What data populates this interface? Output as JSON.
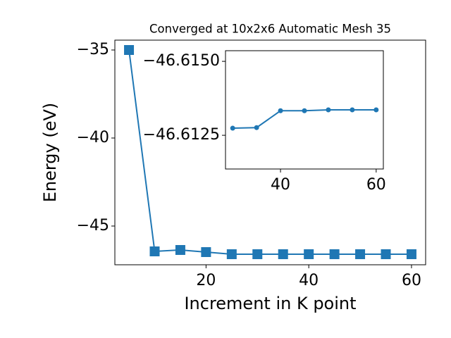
{
  "chart_data": [
    {
      "type": "line",
      "title": "Converged at 10x2x6 Automatic Mesh 35",
      "xlabel": "Increment in K point",
      "ylabel": "Energy (eV)",
      "marker": "square",
      "color": "#1f77b4",
      "x": [
        5,
        10,
        15,
        20,
        25,
        30,
        35,
        40,
        45,
        50,
        55,
        60
      ],
      "values": [
        -35,
        -46.44,
        -46.36,
        -46.48,
        -46.6,
        -46.6,
        -46.6,
        -46.6,
        -46.6,
        -46.6,
        -46.6,
        -46.6
      ],
      "xlim": [
        2.25,
        62.75
      ],
      "ylim": [
        -47.2,
        -34.44
      ],
      "xticks": [
        20,
        40,
        60
      ],
      "yticks": [
        {
          "value": -35,
          "label": "−35"
        },
        {
          "value": -40,
          "label": "−40"
        },
        {
          "value": -45,
          "label": "−45"
        }
      ]
    },
    {
      "type": "line",
      "marker": "circle",
      "color": "#1f77b4",
      "x": [
        30,
        35,
        40,
        45,
        50,
        55,
        60
      ],
      "values": [
        -46.61274,
        -46.61276,
        -46.61333,
        -46.61333,
        -46.61336,
        -46.61336,
        -46.61336
      ],
      "xlim": [
        28.5,
        61.5
      ],
      "ylim": [
        -46.61136,
        -46.61536
      ],
      "xticks": [
        40,
        60
      ],
      "yticks": [
        {
          "value": -46.615,
          "label": "−46.6150"
        },
        {
          "value": -46.6125,
          "label": "−46.6125"
        }
      ]
    }
  ]
}
